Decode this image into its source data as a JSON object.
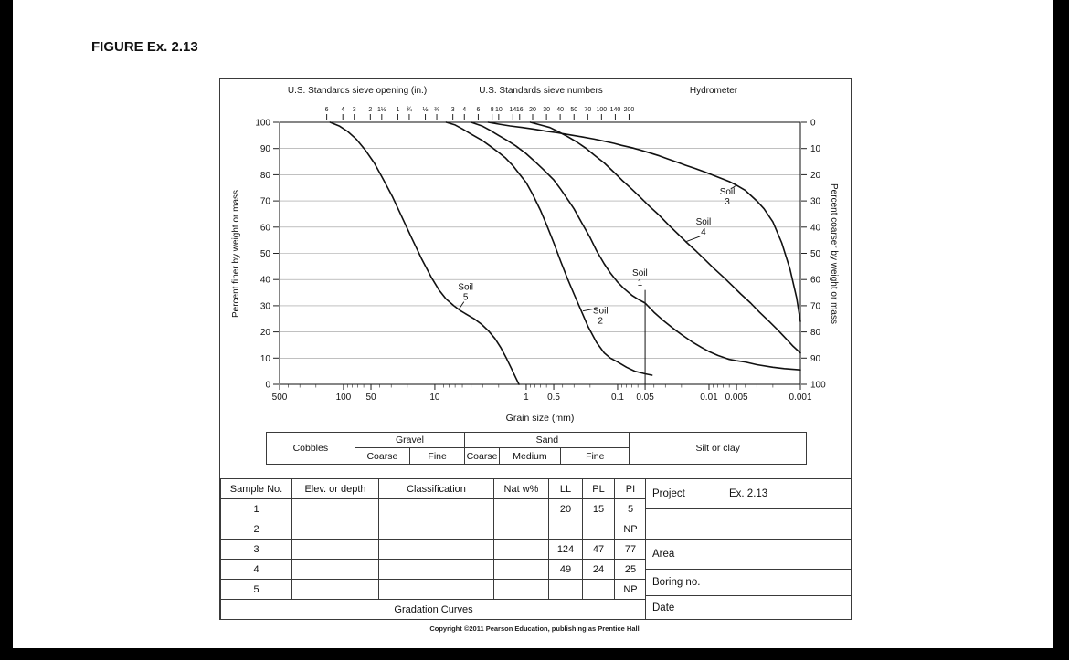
{
  "page": {
    "figure_label": "FIGURE Ex. 2.13",
    "copyright": "Copyright ©2011 Pearson Education, publishing as Prentice Hall"
  },
  "chart_data": {
    "type": "line",
    "title": "Gradation Curves",
    "x_axis": {
      "label": "Grain size (mm)",
      "scale": "log",
      "min": 0.001,
      "max": 500,
      "tick_labels": [
        500,
        100,
        50,
        10,
        1,
        0.5,
        0.1,
        0.05,
        0.01,
        0.005,
        0.001
      ]
    },
    "y_axis_left": {
      "label": "Percent finer by weight or mass",
      "min": 0,
      "max": 100,
      "ticks": [
        0,
        10,
        20,
        30,
        40,
        50,
        60,
        70,
        80,
        90,
        100
      ]
    },
    "y_axis_right": {
      "label": "Percent coarser by weight or mass",
      "min": 0,
      "max": 100,
      "ticks": [
        0,
        10,
        20,
        30,
        40,
        50,
        60,
        70,
        80,
        90,
        100
      ]
    },
    "top_axis": {
      "sieve_opening_header": "U.S. Standards sieve opening (in.)",
      "sieve_numbers_header": "U.S. Standards sieve numbers",
      "hydrometer_header": "Hydrometer",
      "sieve_openings": [
        {
          "label": "6",
          "mm": 152.4
        },
        {
          "label": "4",
          "mm": 101.6
        },
        {
          "label": "3",
          "mm": 76.2
        },
        {
          "label": "2",
          "mm": 50.8
        },
        {
          "label": "1½",
          "mm": 38.1
        },
        {
          "label": "1",
          "mm": 25.4
        },
        {
          "label": "¾",
          "mm": 19.05
        },
        {
          "label": "½",
          "mm": 12.7
        },
        {
          "label": "⅜",
          "mm": 9.525
        }
      ],
      "sieve_numbers": [
        {
          "label": "3",
          "mm": 6.35
        },
        {
          "label": "4",
          "mm": 4.75
        },
        {
          "label": "6",
          "mm": 3.35
        },
        {
          "label": "8",
          "mm": 2.36
        },
        {
          "label": "10",
          "mm": 2.0
        },
        {
          "label": "14",
          "mm": 1.4
        },
        {
          "label": "16",
          "mm": 1.18
        },
        {
          "label": "20",
          "mm": 0.85
        },
        {
          "label": "30",
          "mm": 0.6
        },
        {
          "label": "40",
          "mm": 0.425
        },
        {
          "label": "50",
          "mm": 0.3
        },
        {
          "label": "70",
          "mm": 0.212
        },
        {
          "label": "100",
          "mm": 0.15
        },
        {
          "label": "140",
          "mm": 0.106
        },
        {
          "label": "200",
          "mm": 0.075
        }
      ]
    },
    "series": [
      {
        "name": "Soil 5",
        "points": [
          [
            140,
            100
          ],
          [
            110,
            98.5
          ],
          [
            90,
            96.5
          ],
          [
            72,
            93.5
          ],
          [
            58,
            89.5
          ],
          [
            46,
            84.5
          ],
          [
            37,
            78.5
          ],
          [
            29,
            71.5
          ],
          [
            23,
            64
          ],
          [
            18,
            56
          ],
          [
            14,
            48
          ],
          [
            11,
            41
          ],
          [
            9,
            36
          ],
          [
            7.5,
            32.5
          ],
          [
            6.2,
            30
          ],
          [
            5.2,
            28
          ],
          [
            4.4,
            26.5
          ],
          [
            3.7,
            25
          ],
          [
            3.1,
            23
          ],
          [
            2.6,
            20.5
          ],
          [
            2.2,
            17.5
          ],
          [
            1.9,
            14
          ],
          [
            1.65,
            10
          ],
          [
            1.45,
            6
          ],
          [
            1.3,
            2.5
          ],
          [
            1.2,
            0
          ]
        ]
      },
      {
        "name": "Soil 2",
        "points": [
          [
            7.5,
            100
          ],
          [
            6,
            99
          ],
          [
            5,
            97.5
          ],
          [
            4,
            95.5
          ],
          [
            3,
            93
          ],
          [
            2.5,
            91
          ],
          [
            2,
            88.5
          ],
          [
            1.7,
            86.5
          ],
          [
            1.4,
            83.5
          ],
          [
            1.2,
            80.5
          ],
          [
            1,
            77
          ],
          [
            0.85,
            72.5
          ],
          [
            0.7,
            66.5
          ],
          [
            0.6,
            61
          ],
          [
            0.5,
            54
          ],
          [
            0.42,
            47
          ],
          [
            0.35,
            40
          ],
          [
            0.3,
            34.5
          ],
          [
            0.25,
            28
          ],
          [
            0.21,
            22
          ],
          [
            0.17,
            16
          ],
          [
            0.14,
            12
          ],
          [
            0.12,
            10
          ],
          [
            0.1,
            8.5
          ],
          [
            0.08,
            6.5
          ],
          [
            0.065,
            5
          ],
          [
            0.05,
            4
          ],
          [
            0.042,
            3.5
          ]
        ]
      },
      {
        "name": "Soil 1",
        "points": [
          [
            4,
            100
          ],
          [
            3,
            98.5
          ],
          [
            2.5,
            97
          ],
          [
            2,
            95
          ],
          [
            1.6,
            93
          ],
          [
            1.3,
            91
          ],
          [
            1,
            88
          ],
          [
            0.8,
            85
          ],
          [
            0.65,
            82
          ],
          [
            0.5,
            78
          ],
          [
            0.42,
            74.5
          ],
          [
            0.35,
            70.5
          ],
          [
            0.3,
            67
          ],
          [
            0.25,
            62
          ],
          [
            0.2,
            56
          ],
          [
            0.17,
            51
          ],
          [
            0.14,
            46
          ],
          [
            0.12,
            42.5
          ],
          [
            0.1,
            39
          ],
          [
            0.085,
            36.5
          ],
          [
            0.07,
            34
          ],
          [
            0.06,
            32.5
          ],
          [
            0.05,
            31
          ],
          [
            0.04,
            27.5
          ],
          [
            0.032,
            24.5
          ],
          [
            0.025,
            21.5
          ],
          [
            0.02,
            19
          ],
          [
            0.015,
            16
          ],
          [
            0.012,
            14
          ],
          [
            0.01,
            12.5
          ],
          [
            0.008,
            11
          ],
          [
            0.006,
            9.5
          ],
          [
            0.005,
            9
          ],
          [
            0.004,
            8.5
          ],
          [
            0.003,
            7.5
          ],
          [
            0.002,
            6.5
          ],
          [
            0.0015,
            6
          ],
          [
            0.001,
            5.5
          ]
        ]
      },
      {
        "name": "Soil 4",
        "points": [
          [
            0.9,
            100
          ],
          [
            0.7,
            99
          ],
          [
            0.55,
            98
          ],
          [
            0.45,
            96.5
          ],
          [
            0.35,
            94.5
          ],
          [
            0.28,
            92.5
          ],
          [
            0.22,
            90
          ],
          [
            0.18,
            87.5
          ],
          [
            0.14,
            84.5
          ],
          [
            0.11,
            81
          ],
          [
            0.09,
            78
          ],
          [
            0.07,
            74.5
          ],
          [
            0.055,
            71
          ],
          [
            0.045,
            68
          ],
          [
            0.035,
            64.5
          ],
          [
            0.028,
            61
          ],
          [
            0.022,
            57.5
          ],
          [
            0.018,
            54.5
          ],
          [
            0.014,
            51
          ],
          [
            0.011,
            47.5
          ],
          [
            0.009,
            44.5
          ],
          [
            0.007,
            41
          ],
          [
            0.0055,
            37.5
          ],
          [
            0.0045,
            34.5
          ],
          [
            0.0035,
            31
          ],
          [
            0.0028,
            27.5
          ],
          [
            0.0022,
            24
          ],
          [
            0.0018,
            21
          ],
          [
            0.0014,
            17
          ],
          [
            0.0012,
            14.5
          ],
          [
            0.001,
            12
          ]
        ]
      },
      {
        "name": "Soil 3",
        "points": [
          [
            2.6,
            100
          ],
          [
            2,
            99.3
          ],
          [
            1.5,
            98.6
          ],
          [
            1.1,
            98
          ],
          [
            0.8,
            97.3
          ],
          [
            0.6,
            96.6
          ],
          [
            0.45,
            96
          ],
          [
            0.33,
            95.2
          ],
          [
            0.25,
            94.5
          ],
          [
            0.18,
            93.6
          ],
          [
            0.14,
            92.8
          ],
          [
            0.11,
            92
          ],
          [
            0.09,
            91.2
          ],
          [
            0.07,
            90.3
          ],
          [
            0.055,
            89.3
          ],
          [
            0.045,
            88.4
          ],
          [
            0.035,
            87.2
          ],
          [
            0.028,
            86
          ],
          [
            0.022,
            84.7
          ],
          [
            0.018,
            83.6
          ],
          [
            0.014,
            82.3
          ],
          [
            0.011,
            81
          ],
          [
            0.009,
            79.8
          ],
          [
            0.007,
            78.3
          ],
          [
            0.006,
            77.4
          ],
          [
            0.005,
            76
          ],
          [
            0.004,
            74
          ],
          [
            0.003,
            70
          ],
          [
            0.0025,
            67
          ],
          [
            0.002,
            62
          ],
          [
            0.0016,
            54
          ],
          [
            0.0013,
            44
          ],
          [
            0.0011,
            33
          ],
          [
            0.001,
            24
          ]
        ]
      }
    ],
    "labels": [
      {
        "line1": "Soil",
        "line2": "5",
        "x_mm": 4.6,
        "y_pct": 36,
        "leader": [
          [
            4.8,
            31.5
          ],
          [
            5.5,
            28.5
          ]
        ]
      },
      {
        "line1": "Soil",
        "line2": "2",
        "x_mm": 0.154,
        "y_pct": 27,
        "leader": [
          [
            0.17,
            29
          ],
          [
            0.24,
            28
          ]
        ]
      },
      {
        "line1": "Soil",
        "line2": "1",
        "x_mm": 0.057,
        "y_pct": 41.5,
        "leader": null
      },
      {
        "line1": "Soil",
        "line2": "4",
        "x_mm": 0.0115,
        "y_pct": 61,
        "leader": [
          [
            0.0125,
            56.5
          ],
          [
            0.0177,
            54.5
          ]
        ]
      },
      {
        "line1": "Soil",
        "line2": "3",
        "x_mm": 0.0063,
        "y_pct": 72.5,
        "leader": [
          [
            0.0058,
            74.5
          ],
          [
            0.005,
            76
          ]
        ]
      }
    ],
    "vline": {
      "x_mm": 0.05,
      "from_pct": 0,
      "to_pct": 36
    }
  },
  "classification_bar": {
    "groups": [
      {
        "label": "Cobbles",
        "from_mm": 500,
        "to_mm": 76.2,
        "sub": []
      },
      {
        "label": "Gravel",
        "from_mm": 76.2,
        "to_mm": 4.75,
        "sub": [
          {
            "label": "Coarse",
            "from_mm": 76.2,
            "to_mm": 19
          },
          {
            "label": "Fine",
            "from_mm": 19,
            "to_mm": 4.75
          }
        ]
      },
      {
        "label": "Sand",
        "from_mm": 4.75,
        "to_mm": 0.075,
        "sub": [
          {
            "label": "Coarse",
            "from_mm": 4.75,
            "to_mm": 2
          },
          {
            "label": "Medium",
            "from_mm": 2,
            "to_mm": 0.425
          },
          {
            "label": "Fine",
            "from_mm": 0.425,
            "to_mm": 0.075
          }
        ]
      },
      {
        "label": "Silt or clay",
        "from_mm": 0.075,
        "to_mm": 0.001,
        "sub": []
      }
    ]
  },
  "samples_table": {
    "headers": [
      "Sample No.",
      "Elev. or depth",
      "Classification",
      "Nat w%",
      "LL",
      "PL",
      "PI"
    ],
    "rows": [
      [
        "1",
        "",
        "",
        "",
        "20",
        "15",
        "5"
      ],
      [
        "2",
        "",
        "",
        "",
        "",
        "",
        "NP"
      ],
      [
        "3",
        "",
        "",
        "",
        "124",
        "47",
        "77"
      ],
      [
        "4",
        "",
        "",
        "",
        "49",
        "24",
        "25"
      ],
      [
        "5",
        "",
        "",
        "",
        "",
        "",
        "NP"
      ]
    ],
    "footer": "Gradation Curves"
  },
  "info_panel": {
    "rows": [
      {
        "label": "Project",
        "value": "Ex. 2.13"
      },
      {
        "label": "",
        "value": ""
      },
      {
        "label": "Area",
        "value": ""
      },
      {
        "label": "Boring no.",
        "value": ""
      },
      {
        "label": "Date",
        "value": ""
      }
    ]
  }
}
